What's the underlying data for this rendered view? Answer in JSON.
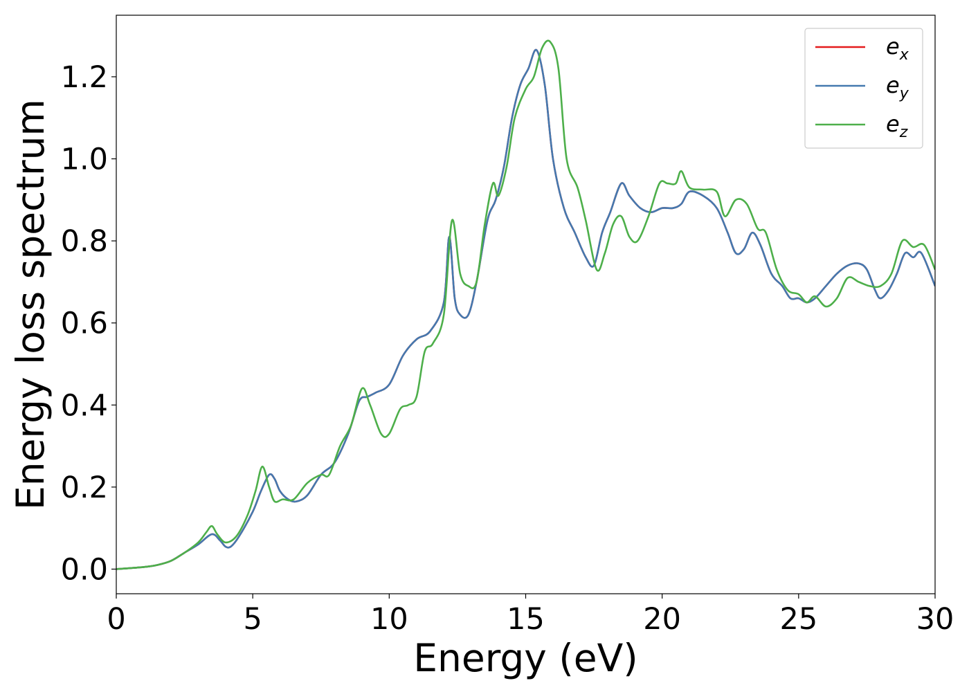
{
  "chart_data": {
    "type": "line",
    "title": "",
    "xlabel": "Energy (eV)",
    "ylabel": "Energy loss spectrum",
    "xlim": [
      0,
      30
    ],
    "ylim": [
      -0.06,
      1.35
    ],
    "xticks": [
      0,
      5,
      10,
      15,
      20,
      25,
      30
    ],
    "xtick_labels": [
      "0",
      "5",
      "10",
      "15",
      "20",
      "25",
      "30"
    ],
    "yticks": [
      0.0,
      0.2,
      0.4,
      0.6,
      0.8,
      1.0,
      1.2
    ],
    "ytick_labels": [
      "0.0",
      "0.2",
      "0.4",
      "0.6",
      "0.8",
      "1.0",
      "1.2"
    ],
    "grid": false,
    "legend_position": "top-right",
    "series": [
      {
        "name": "e",
        "subscript": "x",
        "color": "#e41a1c",
        "x": [
          0,
          1,
          1.5,
          2,
          2.5,
          3,
          3.5,
          3.8,
          4,
          4.2,
          4.5,
          5,
          5.3,
          5.6,
          5.8,
          6,
          6.3,
          6.6,
          7,
          7.5,
          8,
          8.5,
          8.9,
          9.2,
          9.5,
          10,
          10.5,
          11,
          11.5,
          12,
          12.2,
          12.4,
          12.6,
          12.9,
          13.2,
          13.6,
          13.9,
          14.2,
          14.5,
          14.8,
          15.1,
          15.4,
          15.7,
          16,
          16.4,
          16.8,
          17.2,
          17.5,
          17.8,
          18.1,
          18.5,
          18.8,
          19.2,
          19.6,
          20,
          20.4,
          20.7,
          21,
          21.5,
          22,
          22.4,
          22.7,
          23,
          23.3,
          23.6,
          24,
          24.4,
          24.7,
          25,
          25.3,
          25.6,
          26,
          26.4,
          26.8,
          27.2,
          27.5,
          27.8,
          28,
          28.3,
          28.6,
          28.9,
          29.2,
          29.5,
          30
        ],
        "values": [
          0.0,
          0.005,
          0.01,
          0.02,
          0.04,
          0.06,
          0.085,
          0.07,
          0.055,
          0.055,
          0.08,
          0.14,
          0.19,
          0.23,
          0.22,
          0.19,
          0.17,
          0.165,
          0.18,
          0.23,
          0.26,
          0.33,
          0.41,
          0.42,
          0.43,
          0.45,
          0.52,
          0.56,
          0.58,
          0.65,
          0.81,
          0.66,
          0.62,
          0.62,
          0.7,
          0.85,
          0.9,
          0.98,
          1.1,
          1.18,
          1.22,
          1.265,
          1.18,
          1.0,
          0.88,
          0.82,
          0.76,
          0.74,
          0.82,
          0.87,
          0.94,
          0.91,
          0.88,
          0.87,
          0.88,
          0.88,
          0.89,
          0.92,
          0.91,
          0.88,
          0.82,
          0.77,
          0.78,
          0.82,
          0.79,
          0.72,
          0.69,
          0.66,
          0.66,
          0.65,
          0.66,
          0.69,
          0.72,
          0.74,
          0.745,
          0.73,
          0.68,
          0.66,
          0.68,
          0.72,
          0.77,
          0.76,
          0.77,
          0.69
        ]
      },
      {
        "name": "e",
        "subscript": "y",
        "color": "#4479af",
        "x": [
          0,
          1,
          1.5,
          2,
          2.5,
          3,
          3.5,
          3.8,
          4,
          4.2,
          4.5,
          5,
          5.3,
          5.6,
          5.8,
          6,
          6.3,
          6.6,
          7,
          7.5,
          8,
          8.5,
          8.9,
          9.2,
          9.5,
          10,
          10.5,
          11,
          11.5,
          12,
          12.2,
          12.4,
          12.6,
          12.9,
          13.2,
          13.6,
          13.9,
          14.2,
          14.5,
          14.8,
          15.1,
          15.4,
          15.7,
          16,
          16.4,
          16.8,
          17.2,
          17.5,
          17.8,
          18.1,
          18.5,
          18.8,
          19.2,
          19.6,
          20,
          20.4,
          20.7,
          21,
          21.5,
          22,
          22.4,
          22.7,
          23,
          23.3,
          23.6,
          24,
          24.4,
          24.7,
          25,
          25.3,
          25.6,
          26,
          26.4,
          26.8,
          27.2,
          27.5,
          27.8,
          28,
          28.3,
          28.6,
          28.9,
          29.2,
          29.5,
          30
        ],
        "values": [
          0.0,
          0.005,
          0.01,
          0.02,
          0.04,
          0.06,
          0.085,
          0.07,
          0.055,
          0.055,
          0.08,
          0.14,
          0.19,
          0.23,
          0.22,
          0.19,
          0.17,
          0.165,
          0.18,
          0.23,
          0.26,
          0.33,
          0.41,
          0.42,
          0.43,
          0.45,
          0.52,
          0.56,
          0.58,
          0.65,
          0.81,
          0.66,
          0.62,
          0.62,
          0.7,
          0.85,
          0.9,
          0.98,
          1.1,
          1.18,
          1.22,
          1.265,
          1.18,
          1.0,
          0.88,
          0.82,
          0.76,
          0.74,
          0.82,
          0.87,
          0.94,
          0.91,
          0.88,
          0.87,
          0.88,
          0.88,
          0.89,
          0.92,
          0.91,
          0.88,
          0.82,
          0.77,
          0.78,
          0.82,
          0.79,
          0.72,
          0.69,
          0.66,
          0.66,
          0.65,
          0.66,
          0.69,
          0.72,
          0.74,
          0.745,
          0.73,
          0.68,
          0.66,
          0.68,
          0.72,
          0.77,
          0.76,
          0.77,
          0.69
        ]
      },
      {
        "name": "e",
        "subscript": "z",
        "color": "#4daf4a",
        "x": [
          0,
          1,
          1.5,
          2,
          2.5,
          3,
          3.3,
          3.5,
          3.7,
          4,
          4.4,
          4.8,
          5.1,
          5.35,
          5.6,
          5.8,
          6.1,
          6.5,
          7,
          7.5,
          7.8,
          8.2,
          8.6,
          9,
          9.3,
          9.7,
          10,
          10.4,
          10.7,
          11,
          11.3,
          11.6,
          12,
          12.3,
          12.6,
          12.9,
          13.2,
          13.5,
          13.8,
          14,
          14.3,
          14.6,
          15,
          15.3,
          15.6,
          15.9,
          16.2,
          16.5,
          16.9,
          17.2,
          17.6,
          17.9,
          18.2,
          18.5,
          18.8,
          19.1,
          19.5,
          19.9,
          20.2,
          20.5,
          20.7,
          21,
          21.5,
          22,
          22.3,
          22.7,
          23.1,
          23.5,
          23.8,
          24.2,
          24.6,
          25,
          25.3,
          25.6,
          26,
          26.4,
          26.8,
          27.2,
          27.6,
          28,
          28.4,
          28.8,
          29.2,
          29.6,
          30
        ],
        "values": [
          0.0,
          0.005,
          0.01,
          0.02,
          0.04,
          0.065,
          0.09,
          0.105,
          0.085,
          0.065,
          0.08,
          0.13,
          0.19,
          0.25,
          0.2,
          0.165,
          0.17,
          0.17,
          0.21,
          0.23,
          0.23,
          0.3,
          0.35,
          0.44,
          0.4,
          0.33,
          0.33,
          0.39,
          0.4,
          0.42,
          0.53,
          0.55,
          0.62,
          0.85,
          0.72,
          0.69,
          0.7,
          0.84,
          0.94,
          0.91,
          0.98,
          1.1,
          1.17,
          1.2,
          1.27,
          1.285,
          1.22,
          1.0,
          0.93,
          0.85,
          0.73,
          0.77,
          0.84,
          0.86,
          0.81,
          0.8,
          0.86,
          0.94,
          0.94,
          0.94,
          0.97,
          0.93,
          0.925,
          0.92,
          0.86,
          0.9,
          0.89,
          0.83,
          0.82,
          0.73,
          0.68,
          0.67,
          0.65,
          0.665,
          0.64,
          0.66,
          0.71,
          0.7,
          0.69,
          0.69,
          0.72,
          0.8,
          0.785,
          0.79,
          0.73
        ]
      }
    ]
  }
}
